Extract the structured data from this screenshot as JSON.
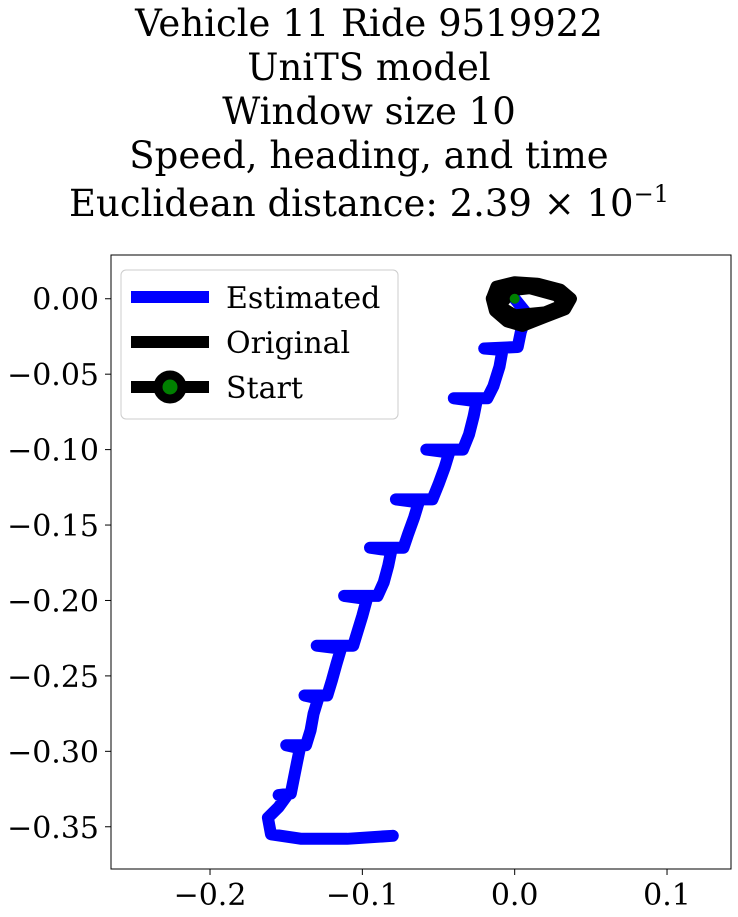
{
  "chart_data": {
    "type": "line",
    "title_lines": [
      "Vehicle 11 Ride 9519922",
      "UniTS model",
      "Window size 10",
      "Speed, heading, and time"
    ],
    "distance_label": "Euclidean distance: 2.39",
    "distance_multiplier": "× 10",
    "distance_exponent": "−1",
    "xlim": [
      -0.265,
      0.142
    ],
    "ylim": [
      -0.378,
      0.029
    ],
    "xticks": [
      {
        "value": -0.2,
        "label": "−0.2"
      },
      {
        "value": -0.1,
        "label": "−0.1"
      },
      {
        "value": 0.0,
        "label": "0.0"
      },
      {
        "value": 0.1,
        "label": "0.1"
      }
    ],
    "yticks": [
      {
        "value": 0.0,
        "label": "0.00"
      },
      {
        "value": -0.05,
        "label": "−0.05"
      },
      {
        "value": -0.1,
        "label": "−0.10"
      },
      {
        "value": -0.15,
        "label": "−0.15"
      },
      {
        "value": -0.2,
        "label": "−0.20"
      },
      {
        "value": -0.25,
        "label": "−0.25"
      },
      {
        "value": -0.3,
        "label": "−0.30"
      },
      {
        "value": -0.35,
        "label": "−0.35"
      }
    ],
    "legend": {
      "position": "upper-left",
      "entries": [
        "Estimated",
        "Original",
        "Start"
      ]
    },
    "series": [
      {
        "name": "Estimated",
        "color": "#0000ff",
        "points": [
          [
            0.0,
            0.0
          ],
          [
            0.008,
            -0.01
          ],
          [
            0.004,
            -0.022
          ],
          [
            0.002,
            -0.032
          ],
          [
            -0.02,
            -0.033
          ],
          [
            -0.008,
            -0.034
          ],
          [
            -0.01,
            -0.045
          ],
          [
            -0.014,
            -0.058
          ],
          [
            -0.018,
            -0.066
          ],
          [
            -0.04,
            -0.066
          ],
          [
            -0.025,
            -0.068
          ],
          [
            -0.027,
            -0.078
          ],
          [
            -0.03,
            -0.09
          ],
          [
            -0.034,
            -0.1
          ],
          [
            -0.058,
            -0.1
          ],
          [
            -0.043,
            -0.102
          ],
          [
            -0.046,
            -0.112
          ],
          [
            -0.05,
            -0.123
          ],
          [
            -0.054,
            -0.133
          ],
          [
            -0.078,
            -0.133
          ],
          [
            -0.063,
            -0.135
          ],
          [
            -0.066,
            -0.145
          ],
          [
            -0.07,
            -0.156
          ],
          [
            -0.073,
            -0.165
          ],
          [
            -0.095,
            -0.165
          ],
          [
            -0.081,
            -0.167
          ],
          [
            -0.083,
            -0.177
          ],
          [
            -0.086,
            -0.188
          ],
          [
            -0.09,
            -0.197
          ],
          [
            -0.112,
            -0.197
          ],
          [
            -0.097,
            -0.199
          ],
          [
            -0.1,
            -0.21
          ],
          [
            -0.103,
            -0.22
          ],
          [
            -0.106,
            -0.23
          ],
          [
            -0.13,
            -0.23
          ],
          [
            -0.114,
            -0.232
          ],
          [
            -0.117,
            -0.242
          ],
          [
            -0.12,
            -0.253
          ],
          [
            -0.123,
            -0.263
          ],
          [
            -0.138,
            -0.263
          ],
          [
            -0.129,
            -0.265
          ],
          [
            -0.132,
            -0.275
          ],
          [
            -0.134,
            -0.286
          ],
          [
            -0.137,
            -0.296
          ],
          [
            -0.15,
            -0.296
          ],
          [
            -0.141,
            -0.298
          ],
          [
            -0.143,
            -0.308
          ],
          [
            -0.145,
            -0.318
          ],
          [
            -0.147,
            -0.328
          ],
          [
            -0.155,
            -0.329
          ],
          [
            -0.15,
            -0.33
          ],
          [
            -0.155,
            -0.337
          ],
          [
            -0.162,
            -0.344
          ],
          [
            -0.16,
            -0.355
          ],
          [
            -0.14,
            -0.358
          ],
          [
            -0.11,
            -0.358
          ],
          [
            -0.08,
            -0.356
          ]
        ]
      },
      {
        "name": "Original",
        "color": "#000000",
        "points": [
          [
            -0.015,
            0.0
          ],
          [
            -0.012,
            0.008
          ],
          [
            0.0,
            0.011
          ],
          [
            0.015,
            0.01
          ],
          [
            0.03,
            0.006
          ],
          [
            0.037,
            0.0
          ],
          [
            0.033,
            -0.007
          ],
          [
            0.02,
            -0.012
          ],
          [
            0.005,
            -0.018
          ],
          [
            -0.005,
            -0.015
          ],
          [
            -0.013,
            -0.008
          ],
          [
            -0.015,
            0.0
          ],
          [
            -0.008,
            0.005
          ],
          [
            0.01,
            0.007
          ],
          [
            0.028,
            0.002
          ],
          [
            0.032,
            -0.004
          ],
          [
            0.02,
            -0.009
          ],
          [
            0.0,
            -0.011
          ],
          [
            -0.01,
            -0.005
          ],
          [
            -0.006,
            0.0
          ]
        ]
      }
    ],
    "start": {
      "label": "Start",
      "x": 0.0,
      "y": 0.0,
      "marker_color": "#008000",
      "edge_color": "#000000"
    }
  }
}
